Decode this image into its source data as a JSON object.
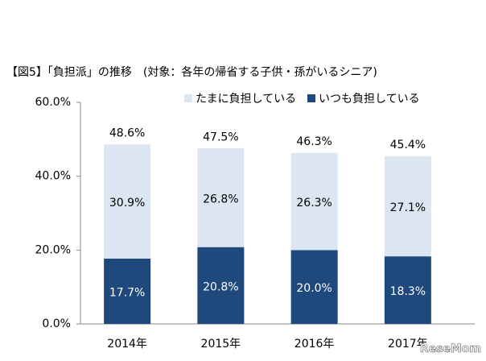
{
  "chart_data": {
    "type": "stacked_bar",
    "title": "【図5】「負担派」の推移　(対象：各年の帰省する子供・孫がいるシニア)",
    "categories": [
      "2014年",
      "2015年",
      "2016年",
      "2017年"
    ],
    "series": [
      {
        "name": "いつも負担している",
        "color": "#1f497d",
        "values": [
          17.7,
          20.8,
          20.0,
          18.3
        ],
        "value_labels": [
          "17.7%",
          "20.8%",
          "20.0%",
          "18.3%"
        ]
      },
      {
        "name": "たまに負担している",
        "color": "#dce6f2",
        "values": [
          30.9,
          26.8,
          26.3,
          27.1
        ],
        "value_labels": [
          "30.9%",
          "26.8%",
          "26.3%",
          "27.1%"
        ]
      }
    ],
    "totals": [
      48.6,
      47.5,
      46.3,
      45.4
    ],
    "total_labels": [
      "48.6%",
      "47.5%",
      "46.3%",
      "45.4%"
    ],
    "ylim": [
      0,
      60
    ],
    "yticks": [
      {
        "value": 0,
        "label": "0.0%"
      },
      {
        "value": 20,
        "label": "20.0%"
      },
      {
        "value": 40,
        "label": "40.0%"
      },
      {
        "value": 60,
        "label": "60.0%"
      }
    ],
    "watermark": "ReseMom"
  }
}
